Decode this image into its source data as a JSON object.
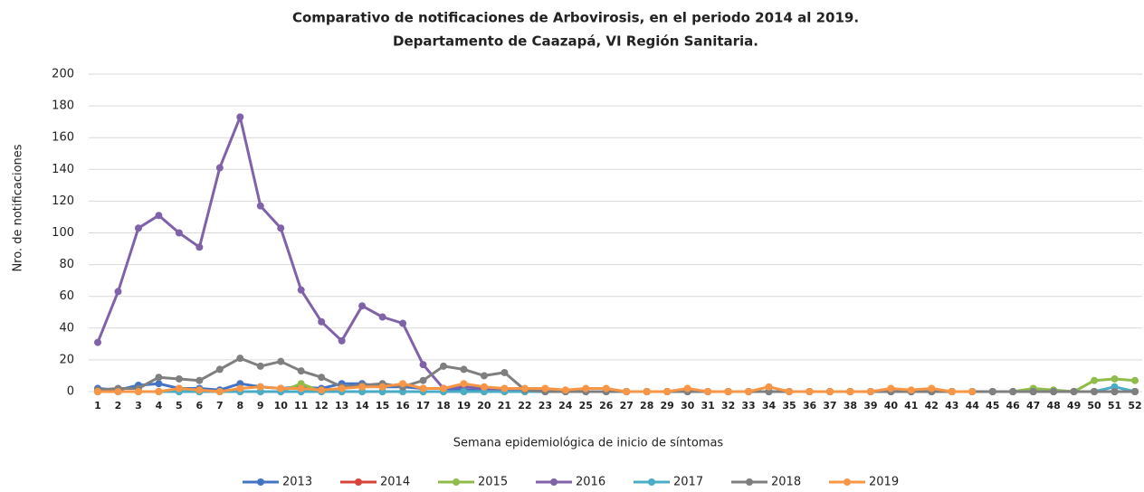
{
  "chart_data": {
    "type": "line",
    "title": "Comparativo de notificaciones de Arbovirosis, en el periodo 2014 al 2019.",
    "subtitle": "Departamento de Caazapá, VI Región Sanitaria.",
    "x_label": "Semana epidemiológica de inicio de síntomas",
    "y_label": "Nro. de notificaciones",
    "categories": [
      "1",
      "2",
      "3",
      "4",
      "5",
      "6",
      "7",
      "8",
      "9",
      "10",
      "11",
      "12",
      "13",
      "14",
      "15",
      "16",
      "17",
      "18",
      "19",
      "20",
      "21",
      "22",
      "23",
      "24",
      "25",
      "26",
      "27",
      "28",
      "29",
      "30",
      "31",
      "32",
      "33",
      "34",
      "35",
      "36",
      "37",
      "38",
      "39",
      "40",
      "41",
      "42",
      "43",
      "44",
      "45",
      "46",
      "47",
      "48",
      "49",
      "50",
      "51",
      "52"
    ],
    "ylim": [
      0,
      200
    ],
    "yticks": [
      0,
      20,
      40,
      60,
      80,
      100,
      120,
      140,
      160,
      180,
      200
    ],
    "grid": true,
    "legend": "bottom",
    "series": [
      {
        "name": "2013",
        "color": "#4472c4",
        "values": [
          2,
          1,
          4,
          5,
          2,
          2,
          1,
          5,
          3,
          2,
          3,
          2,
          5,
          5,
          3,
          3,
          2,
          2,
          1,
          1,
          1,
          1,
          0,
          0,
          0,
          0,
          0,
          0,
          0,
          0,
          0,
          0,
          0,
          0,
          0,
          0,
          0,
          0,
          0,
          0,
          0,
          0,
          0,
          0,
          0,
          0,
          0,
          0,
          0,
          0,
          0,
          0
        ]
      },
      {
        "name": "2014",
        "color": "#d9443a",
        "values": [
          0,
          0,
          0,
          0,
          0,
          0,
          0,
          0,
          0,
          0,
          0,
          0,
          0,
          0,
          0,
          0,
          0,
          0,
          0,
          0,
          0,
          0,
          0,
          0,
          0,
          0,
          0,
          0,
          0,
          0,
          0,
          0,
          0,
          0,
          0,
          0,
          0,
          0,
          0,
          0,
          0,
          0,
          0,
          0,
          0,
          0,
          0,
          0,
          0,
          0,
          0,
          0
        ]
      },
      {
        "name": "2015",
        "color": "#8fbc4a",
        "values": [
          0,
          0,
          0,
          0,
          0,
          0,
          0,
          0,
          0,
          0,
          5,
          0,
          0,
          0,
          0,
          0,
          0,
          0,
          0,
          0,
          0,
          0,
          0,
          0,
          0,
          0,
          0,
          0,
          0,
          0,
          0,
          0,
          0,
          0,
          0,
          0,
          0,
          0,
          0,
          0,
          0,
          0,
          0,
          0,
          0,
          0,
          2,
          1,
          0,
          7,
          8,
          7
        ]
      },
      {
        "name": "2016",
        "color": "#7f62a8",
        "values": [
          31,
          63,
          103,
          111,
          100,
          91,
          141,
          173,
          117,
          103,
          64,
          44,
          32,
          54,
          47,
          43,
          17,
          2,
          3,
          2,
          1,
          1,
          0,
          0,
          0,
          0,
          0,
          0,
          0,
          0,
          0,
          0,
          0,
          0,
          0,
          0,
          0,
          0,
          0,
          0,
          0,
          0,
          0,
          0,
          0,
          0,
          0,
          0,
          0,
          0,
          0,
          0
        ]
      },
      {
        "name": "2017",
        "color": "#4bacc6",
        "values": [
          0,
          0,
          0,
          0,
          0,
          0,
          0,
          0,
          0,
          0,
          0,
          0,
          0,
          0,
          0,
          0,
          0,
          0,
          0,
          0,
          0,
          0,
          0,
          0,
          0,
          0,
          0,
          0,
          0,
          0,
          0,
          0,
          0,
          0,
          0,
          0,
          0,
          0,
          0,
          0,
          0,
          0,
          0,
          0,
          0,
          0,
          0,
          0,
          0,
          0,
          3,
          0
        ]
      },
      {
        "name": "2018",
        "color": "#7f7f7f",
        "values": [
          1,
          2,
          2,
          9,
          8,
          7,
          14,
          21,
          16,
          19,
          13,
          9,
          3,
          4,
          5,
          3,
          7,
          16,
          14,
          10,
          12,
          1,
          0,
          0,
          0,
          0,
          0,
          0,
          0,
          0,
          0,
          0,
          0,
          0,
          0,
          0,
          0,
          0,
          0,
          0,
          0,
          0,
          0,
          0,
          0,
          0,
          0,
          0,
          0,
          0,
          0,
          0
        ]
      },
      {
        "name": "2019",
        "color": "#f79646",
        "values": [
          0,
          0,
          0,
          0,
          2,
          1,
          0,
          2,
          3,
          2,
          2,
          1,
          2,
          3,
          3,
          5,
          2,
          2,
          5,
          3,
          2,
          2,
          2,
          1,
          2,
          2,
          0,
          0,
          0,
          2,
          0,
          0,
          0,
          3,
          0,
          0,
          0,
          0,
          0,
          2,
          1,
          2,
          0,
          0,
          null,
          null,
          null,
          null,
          null,
          null,
          null,
          null
        ]
      }
    ]
  }
}
